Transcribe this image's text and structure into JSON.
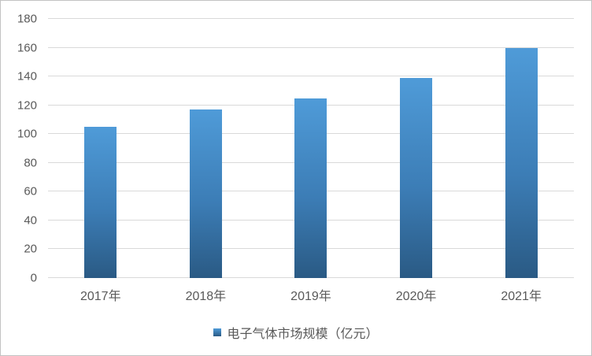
{
  "chart_data": {
    "type": "bar",
    "title": "",
    "categories": [
      "2017年",
      "2018年",
      "2019年",
      "2020年",
      "2021年"
    ],
    "series": [
      {
        "name": "电子气体市场规模（亿元）",
        "values": [
          105,
          117,
          125,
          139,
          160
        ]
      }
    ],
    "xlabel": "",
    "ylabel": "",
    "ylim": [
      0,
      180
    ],
    "ytick_step": 20,
    "grid": true,
    "legend_position": "bottom"
  },
  "legend": {
    "label": "电子气体市场规模（亿元）"
  },
  "colors": {
    "bar_gradient_top": "#4f9bd8",
    "bar_gradient_bottom": "#2a5a84",
    "gridline": "#d9d9d9",
    "axis_text": "#595959",
    "frame_border": "#c3c3c3",
    "background": "#ffffff"
  }
}
